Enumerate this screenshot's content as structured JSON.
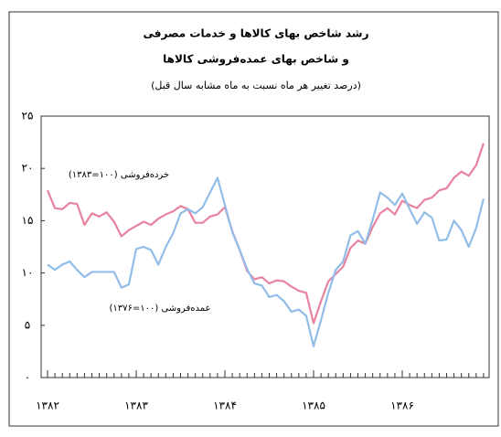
{
  "chart_data": {
    "type": "line",
    "title": "رشد شاخص بهای کالاها و خدمات مصرفی",
    "subtitle": "و شاخص بهای عمده‌فروشی کالاها",
    "note": "(درصد تغییر هر ماه نسبت به ماه مشابه سال قبل)",
    "categories": [
      "۱۳۸۲",
      null,
      null,
      null,
      null,
      null,
      null,
      null,
      null,
      null,
      null,
      null,
      "۱۳۸۳",
      null,
      null,
      null,
      null,
      null,
      null,
      null,
      null,
      null,
      null,
      null,
      "۱۳۸۴",
      null,
      null,
      null,
      null,
      null,
      null,
      null,
      null,
      null,
      null,
      null,
      "۱۳۸۵",
      null,
      null,
      null,
      null,
      null,
      null,
      null,
      null,
      null,
      null,
      null,
      "۱۳۸۶",
      null,
      null,
      null,
      null,
      null,
      null,
      null,
      null,
      null,
      null,
      null
    ],
    "series": [
      {
        "name": "خرده‌فروشی (۱۰۰=۱۳۸۳)",
        "color": "#e8839f",
        "values": [
          17.9,
          16.2,
          16.1,
          16.7,
          16.6,
          14.6,
          15.7,
          15.4,
          15.8,
          14.9,
          13.5,
          14.1,
          14.5,
          14.9,
          14.6,
          15.2,
          15.6,
          15.9,
          16.4,
          16.1,
          14.8,
          14.8,
          15.4,
          15.6,
          16.3,
          14.0,
          12.2,
          10.2,
          9.4,
          9.6,
          9.0,
          9.3,
          9.2,
          8.7,
          8.3,
          8.1,
          5.2,
          7.3,
          9.2,
          9.9,
          10.6,
          12.4,
          13.1,
          12.8,
          14.4,
          15.7,
          16.2,
          15.6,
          16.9,
          16.5,
          16.2,
          17.0,
          17.2,
          17.9,
          18.1,
          19.1,
          19.7,
          19.3,
          20.3,
          22.4
        ]
      },
      {
        "name": "عمده‌فروشی (۱۰۰=۱۳۷۶)",
        "color": "#92bde8",
        "values": [
          10.8,
          10.3,
          10.8,
          11.1,
          10.3,
          9.6,
          10.1,
          10.1,
          10.1,
          10.1,
          8.6,
          8.9,
          12.3,
          12.5,
          12.2,
          10.8,
          12.5,
          13.8,
          15.7,
          16.1,
          15.7,
          16.3,
          17.7,
          19.1,
          16.5,
          13.9,
          12.2,
          10.4,
          9.0,
          8.8,
          7.7,
          7.9,
          7.3,
          6.3,
          6.5,
          5.9,
          3.0,
          5.5,
          8.1,
          10.3,
          11.1,
          13.6,
          14.0,
          12.8,
          15.1,
          17.7,
          17.2,
          16.5,
          17.6,
          16.1,
          14.7,
          15.8,
          15.3,
          13.1,
          13.2,
          15.0,
          14.1,
          12.5,
          14.3,
          17.1
        ]
      }
    ],
    "ylim": [
      0,
      25
    ],
    "yticks": [
      {
        "value": 0,
        "label": "۰"
      },
      {
        "value": 5,
        "label": "۵"
      },
      {
        "value": 10,
        "label": "۱۰"
      },
      {
        "value": 15,
        "label": "۱۵"
      },
      {
        "value": 20,
        "label": "۲۰"
      },
      {
        "value": 25,
        "label": "۲۵"
      }
    ]
  }
}
